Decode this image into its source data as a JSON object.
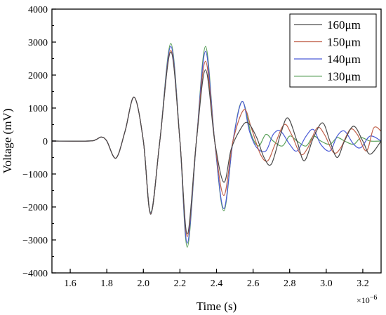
{
  "chart_data": {
    "type": "line",
    "xlabel": "Time (s)",
    "ylabel": "Voltage (mV)",
    "x_multiplier": "×10",
    "x_multiplier_exp": "−6",
    "xlim": [
      1.5,
      3.3
    ],
    "ylim": [
      -4000,
      4000
    ],
    "x_ticks": [
      1.6,
      1.8,
      2.0,
      2.2,
      2.4,
      2.6,
      2.8,
      3.0,
      3.2
    ],
    "x_tick_labels": [
      "1.6",
      "1.8",
      "2.0",
      "2.2",
      "2.4",
      "2.6",
      "2.8",
      "3.0",
      "3.2"
    ],
    "y_ticks": [
      -4000,
      -3000,
      -2000,
      -1000,
      0,
      1000,
      2000,
      3000,
      4000
    ],
    "y_tick_labels": [
      "−4000",
      "−3000",
      "−2000",
      "−1000",
      "0",
      "1000",
      "2000",
      "3000",
      "4000"
    ],
    "grid": false,
    "legend_position": "top-right",
    "series": [
      {
        "name": "160μm",
        "color": "#4a4a4a",
        "points": [
          [
            1.5,
            0
          ],
          [
            1.7,
            0
          ],
          [
            1.74,
            40
          ],
          [
            1.77,
            120
          ],
          [
            1.8,
            0
          ],
          [
            1.85,
            -520
          ],
          [
            1.9,
            300
          ],
          [
            1.95,
            1330
          ],
          [
            2.0,
            0
          ],
          [
            2.04,
            -2220
          ],
          [
            2.09,
            0
          ],
          [
            2.15,
            2700
          ],
          [
            2.2,
            0
          ],
          [
            2.24,
            -2820
          ],
          [
            2.29,
            0
          ],
          [
            2.34,
            2160
          ],
          [
            2.39,
            0
          ],
          [
            2.44,
            -1250
          ],
          [
            2.48,
            -250
          ],
          [
            2.53,
            350
          ],
          [
            2.57,
            560
          ],
          [
            2.62,
            100
          ],
          [
            2.66,
            -500
          ],
          [
            2.7,
            -700
          ],
          [
            2.75,
            200
          ],
          [
            2.79,
            700
          ],
          [
            2.84,
            0
          ],
          [
            2.88,
            -600
          ],
          [
            2.93,
            100
          ],
          [
            2.98,
            550
          ],
          [
            3.02,
            0
          ],
          [
            3.06,
            -500
          ],
          [
            3.1,
            0
          ],
          [
            3.15,
            450
          ],
          [
            3.2,
            0
          ],
          [
            3.24,
            -400
          ],
          [
            3.3,
            0
          ]
        ]
      },
      {
        "name": "150μm",
        "color": "#c0604a",
        "points": [
          [
            1.5,
            0
          ],
          [
            1.7,
            0
          ],
          [
            1.74,
            40
          ],
          [
            1.77,
            120
          ],
          [
            1.8,
            0
          ],
          [
            1.85,
            -520
          ],
          [
            1.9,
            300
          ],
          [
            1.95,
            1330
          ],
          [
            2.0,
            0
          ],
          [
            2.04,
            -2200
          ],
          [
            2.09,
            0
          ],
          [
            2.15,
            2750
          ],
          [
            2.2,
            0
          ],
          [
            2.24,
            -2900
          ],
          [
            2.29,
            0
          ],
          [
            2.34,
            2420
          ],
          [
            2.39,
            0
          ],
          [
            2.44,
            -1650
          ],
          [
            2.49,
            0
          ],
          [
            2.55,
            950
          ],
          [
            2.59,
            400
          ],
          [
            2.64,
            -400
          ],
          [
            2.68,
            -600
          ],
          [
            2.72,
            -100
          ],
          [
            2.77,
            500
          ],
          [
            2.81,
            200
          ],
          [
            2.86,
            -400
          ],
          [
            2.9,
            -200
          ],
          [
            2.95,
            400
          ],
          [
            2.99,
            200
          ],
          [
            3.04,
            -350
          ],
          [
            3.08,
            -200
          ],
          [
            3.13,
            350
          ],
          [
            3.17,
            200
          ],
          [
            3.22,
            -300
          ],
          [
            3.26,
            400
          ],
          [
            3.3,
            300
          ]
        ]
      },
      {
        "name": "140μm",
        "color": "#4a5ad6",
        "points": [
          [
            1.5,
            0
          ],
          [
            1.7,
            0
          ],
          [
            1.74,
            40
          ],
          [
            1.77,
            120
          ],
          [
            1.8,
            0
          ],
          [
            1.85,
            -520
          ],
          [
            1.9,
            300
          ],
          [
            1.95,
            1330
          ],
          [
            2.0,
            0
          ],
          [
            2.04,
            -2180
          ],
          [
            2.09,
            0
          ],
          [
            2.15,
            2870
          ],
          [
            2.2,
            0
          ],
          [
            2.24,
            -3100
          ],
          [
            2.29,
            0
          ],
          [
            2.34,
            2720
          ],
          [
            2.39,
            0
          ],
          [
            2.44,
            -2050
          ],
          [
            2.49,
            0
          ],
          [
            2.54,
            1200
          ],
          [
            2.58,
            300
          ],
          [
            2.62,
            -200
          ],
          [
            2.67,
            -300
          ],
          [
            2.71,
            200
          ],
          [
            2.75,
            300
          ],
          [
            2.8,
            -100
          ],
          [
            2.84,
            -300
          ],
          [
            2.89,
            150
          ],
          [
            2.93,
            350
          ],
          [
            2.97,
            -100
          ],
          [
            3.02,
            -300
          ],
          [
            3.06,
            150
          ],
          [
            3.1,
            300
          ],
          [
            3.15,
            -100
          ],
          [
            3.19,
            -200
          ],
          [
            3.24,
            150
          ],
          [
            3.3,
            0
          ]
        ]
      },
      {
        "name": "130μm",
        "color": "#5aa05a",
        "points": [
          [
            1.5,
            0
          ],
          [
            1.7,
            0
          ],
          [
            1.74,
            40
          ],
          [
            1.77,
            120
          ],
          [
            1.8,
            0
          ],
          [
            1.85,
            -520
          ],
          [
            1.9,
            300
          ],
          [
            1.95,
            1330
          ],
          [
            2.0,
            0
          ],
          [
            2.04,
            -2160
          ],
          [
            2.09,
            0
          ],
          [
            2.15,
            2960
          ],
          [
            2.2,
            0
          ],
          [
            2.24,
            -3220
          ],
          [
            2.29,
            0
          ],
          [
            2.34,
            2870
          ],
          [
            2.39,
            0
          ],
          [
            2.44,
            -2120
          ],
          [
            2.49,
            0
          ],
          [
            2.54,
            1200
          ],
          [
            2.59,
            200
          ],
          [
            2.63,
            -150
          ],
          [
            2.67,
            200
          ],
          [
            2.71,
            0
          ],
          [
            2.76,
            -150
          ],
          [
            2.8,
            150
          ],
          [
            2.84,
            0
          ],
          [
            2.89,
            -150
          ],
          [
            2.93,
            150
          ],
          [
            2.97,
            0
          ],
          [
            3.02,
            -100
          ],
          [
            3.06,
            100
          ],
          [
            3.1,
            0
          ],
          [
            3.15,
            -100
          ],
          [
            3.19,
            100
          ],
          [
            3.24,
            0
          ],
          [
            3.3,
            0
          ]
        ]
      }
    ]
  }
}
